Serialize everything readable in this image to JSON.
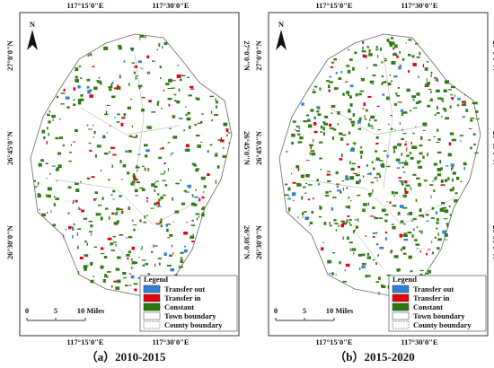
{
  "longitudes": [
    "117°15'0\"E",
    "117°30'0\"E"
  ],
  "latitudes": [
    "27°0'0\"N",
    "26°45'0\"N",
    "26°30'0\"N"
  ],
  "north": "N",
  "legend": {
    "title": "Legend",
    "items": [
      {
        "label": "Transfer out",
        "color": "#2f7fd6"
      },
      {
        "label": "Transfer in",
        "color": "#e3000f"
      },
      {
        "label": "Constant",
        "color": "#2d7a10"
      },
      {
        "label": "Town boundary",
        "color": "#ffffff"
      },
      {
        "label": "County boundary",
        "color": "#ffffff"
      }
    ]
  },
  "scale": [
    "0",
    "5",
    "10 Miles"
  ],
  "panels": [
    {
      "caption": "（a）2010-2015"
    },
    {
      "caption": "（b）2015-2020"
    }
  ]
}
